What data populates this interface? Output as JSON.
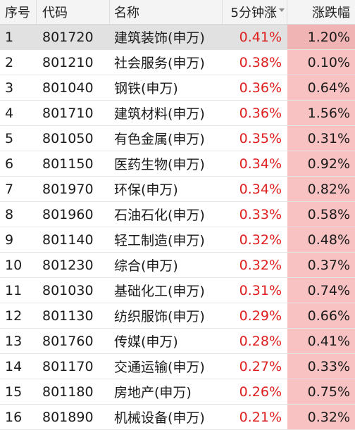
{
  "header": {
    "index": "序号",
    "code": "代码",
    "name": "名称",
    "five_min": "5分钟涨",
    "change_pct": "涨跌幅"
  },
  "accent_colors": {
    "up_text": "#e02020",
    "up_cell_bg": "#f8c2c2",
    "selected_row_bg": "#e1e1e1"
  },
  "selected_index": 0,
  "rows": [
    {
      "index": "1",
      "code": "801720",
      "name": "建筑装饰(申万)",
      "five_min": "0.41%",
      "change_pct": "1.20%"
    },
    {
      "index": "2",
      "code": "801210",
      "name": "社会服务(申万)",
      "five_min": "0.38%",
      "change_pct": "0.10%"
    },
    {
      "index": "3",
      "code": "801040",
      "name": "钢铁(申万)",
      "five_min": "0.36%",
      "change_pct": "0.64%"
    },
    {
      "index": "4",
      "code": "801710",
      "name": "建筑材料(申万)",
      "five_min": "0.36%",
      "change_pct": "1.56%"
    },
    {
      "index": "5",
      "code": "801050",
      "name": "有色金属(申万)",
      "five_min": "0.35%",
      "change_pct": "0.31%"
    },
    {
      "index": "6",
      "code": "801150",
      "name": "医药生物(申万)",
      "five_min": "0.34%",
      "change_pct": "0.92%"
    },
    {
      "index": "7",
      "code": "801970",
      "name": "环保(申万)",
      "five_min": "0.34%",
      "change_pct": "0.82%"
    },
    {
      "index": "8",
      "code": "801960",
      "name": "石油石化(申万)",
      "five_min": "0.33%",
      "change_pct": "0.58%"
    },
    {
      "index": "9",
      "code": "801140",
      "name": "轻工制造(申万)",
      "five_min": "0.32%",
      "change_pct": "0.48%"
    },
    {
      "index": "10",
      "code": "801230",
      "name": "综合(申万)",
      "five_min": "0.32%",
      "change_pct": "0.37%"
    },
    {
      "index": "11",
      "code": "801030",
      "name": "基础化工(申万)",
      "five_min": "0.31%",
      "change_pct": "0.74%"
    },
    {
      "index": "12",
      "code": "801130",
      "name": "纺织服饰(申万)",
      "five_min": "0.29%",
      "change_pct": "0.66%"
    },
    {
      "index": "13",
      "code": "801760",
      "name": "传媒(申万)",
      "five_min": "0.28%",
      "change_pct": "0.41%"
    },
    {
      "index": "14",
      "code": "801170",
      "name": "交通运输(申万)",
      "five_min": "0.27%",
      "change_pct": "0.33%"
    },
    {
      "index": "15",
      "code": "801180",
      "name": "房地产(申万)",
      "five_min": "0.26%",
      "change_pct": "0.75%"
    },
    {
      "index": "16",
      "code": "801890",
      "name": "机械设备(申万)",
      "five_min": "0.21%",
      "change_pct": "0.32%"
    }
  ]
}
